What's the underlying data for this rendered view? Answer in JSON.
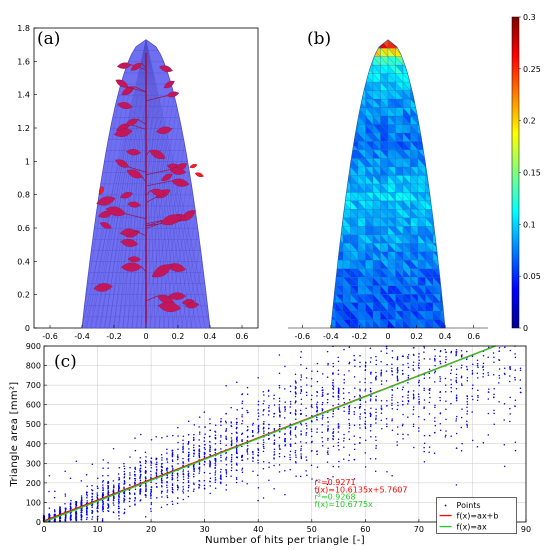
{
  "panels": {
    "a": {
      "label": "(a)"
    },
    "b": {
      "label": "(b)"
    },
    "c": {
      "label": "(c)"
    }
  },
  "colors": {
    "mesh_fill": "#6f6ff2",
    "mesh_line": "#4f4fc8",
    "leaf": "#c2185b",
    "leaf_dark": "#9c1148",
    "highlight": "#ff1a1a",
    "points": "#0000ee",
    "fit_ab": "#ff0000",
    "fit_a": "#22cc22",
    "annotation_red": "#ff0000",
    "annotation_green": "#22cc22"
  },
  "chart_data": [
    {
      "type": "mesh_plot",
      "panel": "(a)",
      "xlim": [
        -0.7,
        0.7
      ],
      "ylim": [
        0,
        1.8
      ],
      "xticks": [
        -0.6,
        -0.4,
        -0.2,
        0,
        0.2,
        0.4,
        0.6
      ],
      "yticks": [
        0,
        0.2,
        0.4,
        0.6,
        0.8,
        1,
        1.2,
        1.4,
        1.6,
        1.8
      ],
      "xtick_labels": [
        "-0.6",
        "-0.4",
        "-0.2",
        "0",
        "0.2",
        "0.4",
        "0.6"
      ],
      "ytick_labels": [
        "0",
        "0.2",
        "0.4",
        "0.6",
        "0.8",
        "1",
        "1.2",
        "1.4",
        "1.6",
        "1.8"
      ],
      "envelope": {
        "half_width": 0.4,
        "height": 1.73
      }
    },
    {
      "type": "heatmap",
      "panel": "(b)",
      "xlim": [
        -0.7,
        0.7
      ],
      "ylim": [
        0,
        1.8
      ],
      "xticks": [
        -0.6,
        -0.4,
        -0.2,
        0,
        0.2,
        0.4,
        0.6
      ],
      "xtick_labels": [
        "-0.6",
        "-0.4",
        "-0.2",
        "0",
        "0.2",
        "0.4",
        "0.6"
      ],
      "colorbar": {
        "range": [
          0,
          0.3
        ],
        "ticks": [
          0,
          0.05,
          0.1,
          0.15,
          0.2,
          0.25,
          0.3
        ],
        "tick_labels": [
          "0",
          "0.05",
          "0.1",
          "0.15",
          "0.2",
          "0.25",
          "0.3"
        ]
      },
      "envelope": {
        "half_width": 0.4,
        "height": 1.73
      },
      "value_profile": [
        {
          "y": 0.0,
          "value": 0.06
        },
        {
          "y": 0.3,
          "value": 0.07
        },
        {
          "y": 0.55,
          "value": 0.085
        },
        {
          "y": 0.8,
          "value": 0.1
        },
        {
          "y": 1.1,
          "value": 0.07
        },
        {
          "y": 1.4,
          "value": 0.085
        },
        {
          "y": 1.6,
          "value": 0.12
        },
        {
          "y": 1.7,
          "value": 0.25
        },
        {
          "y": 1.73,
          "value": 0.29
        }
      ]
    },
    {
      "type": "scatter",
      "panel": "(c)",
      "xlabel": "Number of hits per triangle [-]",
      "ylabel": "Triangle area [mm²]",
      "xlim": [
        0,
        90
      ],
      "ylim": [
        0,
        900
      ],
      "xticks": [
        0,
        10,
        20,
        30,
        40,
        50,
        60,
        70,
        80,
        90
      ],
      "yticks": [
        0,
        100,
        200,
        300,
        400,
        500,
        600,
        700,
        800,
        900
      ],
      "xtick_labels": [
        "0",
        "10",
        "20",
        "30",
        "40",
        "50",
        "60",
        "70",
        "80",
        "90"
      ],
      "ytick_labels": [
        "0",
        "100",
        "200",
        "300",
        "400",
        "500",
        "600",
        "700",
        "800",
        "900"
      ],
      "grid": true,
      "legend_position": "bottom-right",
      "series": [
        {
          "name": "Points",
          "kind": "points",
          "trend_slope": 10.6,
          "n_points": 2600
        },
        {
          "name": "f(x)=ax+b",
          "kind": "line",
          "a": 10.6135,
          "b": 5.7607
        },
        {
          "name": "f(x)=ax",
          "kind": "line",
          "a": 10.6775,
          "b": 0
        }
      ],
      "annotations": [
        {
          "text": "r²=0.9271",
          "color": "red"
        },
        {
          "text": "f(x)=10.6135x+5.7607",
          "color": "red"
        },
        {
          "text": "r²=0.9268",
          "color": "green"
        },
        {
          "text": "f(x)=10.6775x",
          "color": "green"
        }
      ]
    }
  ]
}
